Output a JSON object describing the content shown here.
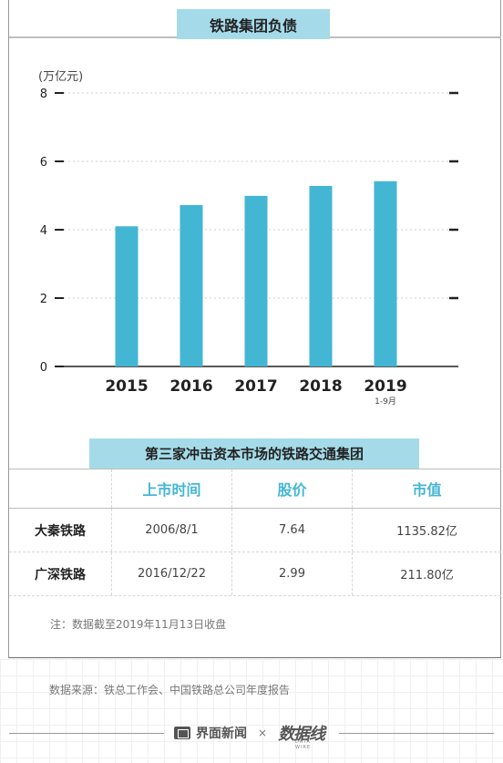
{
  "title": "铁路集团负债",
  "chart_data": {
    "type": "bar",
    "unit_label": "(万亿元)",
    "categories": [
      "2015",
      "2016",
      "2017",
      "2018",
      "2019"
    ],
    "category_sublabels": [
      "",
      "",
      "",
      "",
      "1-9月"
    ],
    "values": [
      4.1,
      4.72,
      4.99,
      5.28,
      5.42
    ],
    "ylim": [
      0,
      8
    ],
    "yticks": [
      "0",
      "2",
      "4",
      "6",
      "8"
    ],
    "grid": true,
    "bar_color": "#43b6d4"
  },
  "table": {
    "title": "第三家冲击资本市场的铁路交通集团",
    "headers": [
      "",
      "上市时间",
      "股价",
      "市值"
    ],
    "rows": [
      [
        "大秦铁路",
        "2006/8/1",
        "7.64",
        "1135.82亿"
      ],
      [
        "广深铁路",
        "2016/12/22",
        "2.99",
        "211.80亿"
      ]
    ],
    "note": "注：数据截至2019年11月13日收盘"
  },
  "footer": {
    "source": "数据来源：铁总工作会、中国铁路总公司年度报告",
    "brand": "界面新闻",
    "separator": "×",
    "partner": "数据线",
    "partner_sub": "DATA WIRE"
  }
}
